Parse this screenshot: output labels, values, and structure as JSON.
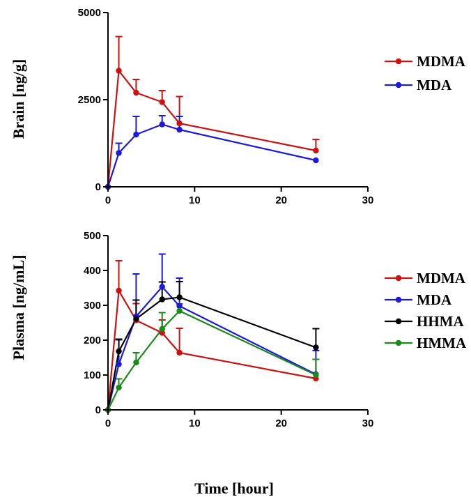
{
  "chart_data": [
    {
      "type": "line",
      "xlabel": "Time [hour]",
      "ylabel": "Brain [ng/g]",
      "xlim": [
        0,
        30
      ],
      "ylim": [
        0,
        5000
      ],
      "xticks": [
        0,
        10,
        20,
        30
      ],
      "yticks": [
        0,
        2500,
        5000
      ],
      "x_tick_labels": [
        "0",
        "10",
        "20",
        "30"
      ],
      "y_tick_labels": [
        "0",
        "2500",
        "5000"
      ],
      "legend_position": "right",
      "series": [
        {
          "name": "MDMA",
          "color": "#cc1111",
          "x": [
            0,
            1.25,
            3.25,
            6.25,
            8.25,
            24
          ],
          "y": [
            0,
            3330,
            2700,
            2430,
            1820,
            1040
          ],
          "err": [
            0,
            980,
            380,
            330,
            770,
            320
          ]
        },
        {
          "name": "MDA",
          "color": "#1a1ad8",
          "x": [
            0,
            1.25,
            3.25,
            6.25,
            8.25,
            24
          ],
          "y": [
            0,
            970,
            1500,
            1790,
            1640,
            760
          ],
          "err": [
            0,
            280,
            520,
            250,
            380,
            0
          ]
        }
      ]
    },
    {
      "type": "line",
      "xlabel": "Time [hour]",
      "ylabel": "Plasma [ng/mL]",
      "xlim": [
        0,
        30
      ],
      "ylim": [
        0,
        500
      ],
      "xticks": [
        0,
        10,
        20,
        30
      ],
      "yticks": [
        0,
        100,
        200,
        300,
        400,
        500
      ],
      "x_tick_labels": [
        "0",
        "10",
        "20",
        "30"
      ],
      "y_tick_labels": [
        "0",
        "100",
        "200",
        "300",
        "400",
        "500"
      ],
      "legend_position": "right",
      "series": [
        {
          "name": "MDMA",
          "color": "#cc1111",
          "x": [
            0,
            1.25,
            3.25,
            6.25,
            8.25,
            24
          ],
          "y": [
            0,
            342,
            257,
            221,
            164,
            90
          ],
          "err": [
            0,
            86,
            48,
            37,
            70,
            55
          ]
        },
        {
          "name": "MDA",
          "color": "#1a1ad8",
          "x": [
            0,
            1.25,
            3.25,
            6.25,
            8.25,
            24
          ],
          "y": [
            0,
            131,
            268,
            353,
            298,
            102
          ],
          "err": [
            0,
            70,
            122,
            94,
            80,
            68
          ]
        },
        {
          "name": "HHMA",
          "color": "#000000",
          "x": [
            0,
            1.25,
            3.25,
            6.25,
            8.25,
            24
          ],
          "y": [
            0,
            168,
            261,
            317,
            323,
            179
          ],
          "err": [
            0,
            35,
            54,
            50,
            45,
            54
          ]
        },
        {
          "name": "HMMA",
          "color": "#1a8a1a",
          "x": [
            0,
            1.25,
            3.25,
            6.25,
            8.25,
            24
          ],
          "y": [
            0,
            64,
            136,
            232,
            284,
            100
          ],
          "err": [
            0,
            25,
            28,
            47,
            20,
            45
          ]
        }
      ]
    }
  ]
}
